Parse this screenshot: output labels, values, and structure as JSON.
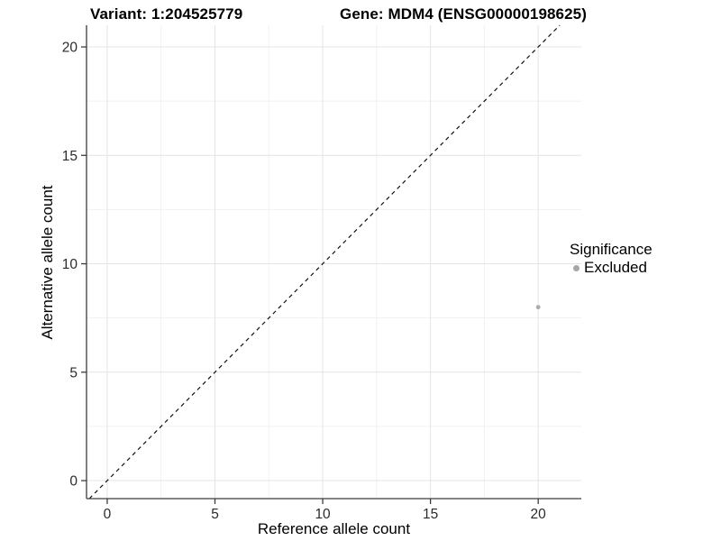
{
  "header": {
    "variant_title": "Variant: 1:204525779",
    "gene_title": "Gene: MDM4 (ENSG00000198625)"
  },
  "chart_data": {
    "type": "scatter",
    "xlabel": "Reference allele count",
    "ylabel": "Alternative allele count",
    "xlim": [
      -0.96,
      22.0
    ],
    "ylim": [
      -0.83,
      21.0
    ],
    "x_ticks": [
      0,
      5,
      10,
      15,
      20
    ],
    "y_ticks": [
      0,
      5,
      10,
      15,
      20
    ],
    "x_minor_ticks": [
      2.5,
      7.5,
      12.5,
      17.5
    ],
    "y_minor_ticks": [
      2.5,
      7.5,
      12.5,
      17.5
    ],
    "grid": "major+minor",
    "reference_line": {
      "type": "identity y=x",
      "style": "dashed",
      "color": "#111111"
    },
    "series": [
      {
        "name": "Excluded",
        "color": "#ababab",
        "marker_radius": 2.4,
        "points": [
          {
            "x": 20,
            "y": 8
          }
        ]
      }
    ],
    "legend": {
      "title": "Significance",
      "position": "right",
      "items": [
        {
          "label": "Excluded",
          "color": "#a6a6a6"
        }
      ]
    },
    "colors": {
      "grid_major": "#e4e4e4",
      "grid_minor": "#f1f1f1",
      "axis_line": "#3c3c3c",
      "tick_label": "#2b2b2b"
    }
  }
}
